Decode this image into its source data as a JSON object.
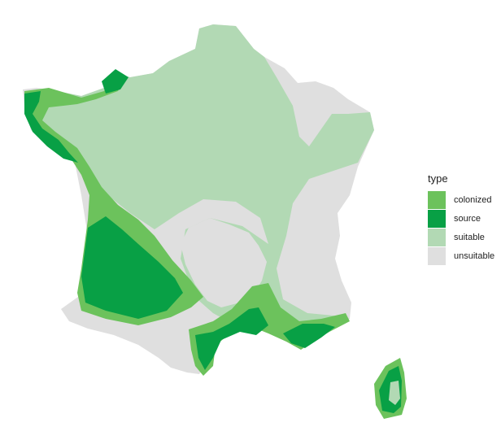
{
  "legend": {
    "title": "type",
    "items": [
      {
        "label": "colonized",
        "color": "#6cc25c"
      },
      {
        "label": "source",
        "color": "#08a045"
      },
      {
        "label": "suitable",
        "color": "#b2d9b4"
      },
      {
        "label": "unsuitable",
        "color": "#dfdfdf"
      }
    ]
  }
}
